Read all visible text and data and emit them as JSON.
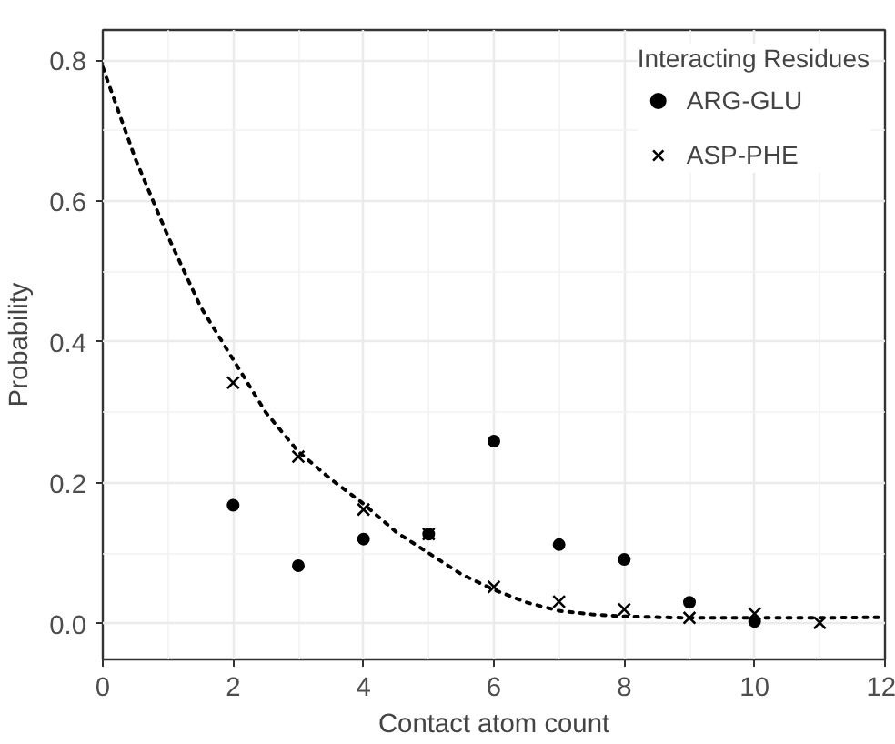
{
  "chart_data": {
    "type": "scatter",
    "xlabel": "Contact atom count",
    "ylabel": "Probability",
    "legend_title": "Interacting Residues",
    "legend": "top right",
    "grid": true,
    "xlim": [
      0,
      12
    ],
    "ylim": [
      -0.051,
      0.843
    ],
    "xticks": [
      0,
      2,
      4,
      6,
      8,
      10,
      12
    ],
    "yticks": [
      {
        "value": 0,
        "label": "0.0"
      },
      {
        "value": 0.2,
        "label": "0.2"
      },
      {
        "value": 0.4,
        "label": "0.4"
      },
      {
        "value": 0.6,
        "label": "0.6"
      },
      {
        "value": 0.8,
        "label": "0.8"
      }
    ],
    "series": [
      {
        "name": "ARG-GLU",
        "color": "#000000",
        "marker": "circle",
        "x": [
          2,
          3,
          4,
          5,
          6,
          7,
          8,
          9,
          10
        ],
        "values": [
          0.168,
          0.082,
          0.12,
          0.127,
          0.259,
          0.112,
          0.091,
          0.03,
          0.003
        ]
      },
      {
        "name": "ASP-PHE",
        "color": "#000000",
        "marker": "cross",
        "x": [
          2,
          3,
          4,
          5,
          6,
          7,
          8,
          9,
          10,
          11
        ],
        "values": [
          0.342,
          0.237,
          0.162,
          0.127,
          0.052,
          0.031,
          0.02,
          0.008,
          0.014,
          0.001
        ]
      },
      {
        "type": "line",
        "color": "#000000",
        "line_style": "dotted",
        "x": [
          0,
          0.5,
          1,
          1.5,
          2,
          2.5,
          3,
          3.5,
          4,
          4.5,
          5,
          5.5,
          6,
          6.5,
          7,
          7.5,
          8,
          9,
          10,
          11,
          12
        ],
        "values": [
          0.79,
          0.66,
          0.55,
          0.45,
          0.375,
          0.3,
          0.244,
          0.205,
          0.17,
          0.13,
          0.1,
          0.07,
          0.048,
          0.03,
          0.018,
          0.013,
          0.01,
          0.008,
          0.008,
          0.008,
          0.009
        ]
      }
    ]
  }
}
